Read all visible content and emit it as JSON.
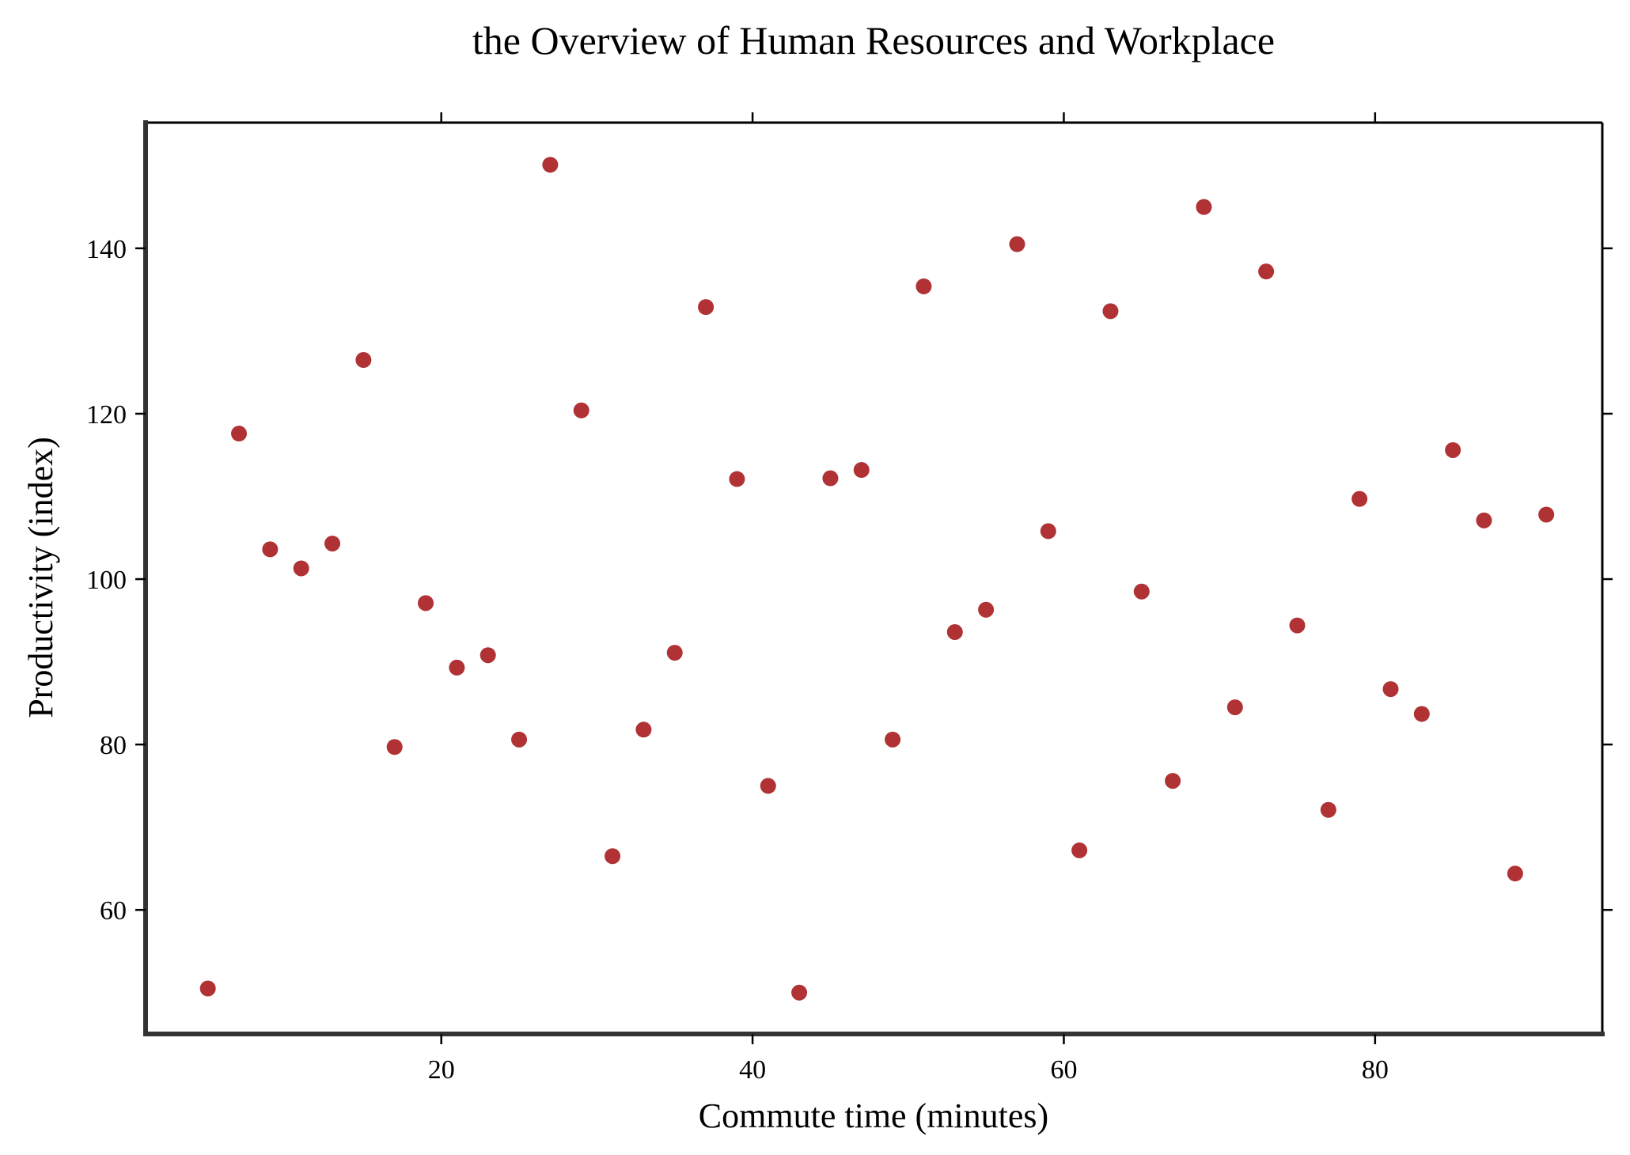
{
  "chart_data": {
    "type": "scatter",
    "title": "the Overview of Human Resources and Workplace",
    "xlabel": "Commute time (minutes)",
    "ylabel": "Productivity (index)",
    "xlim": [
      1.0,
      94.6
    ],
    "ylim": [
      45.0,
      155.2
    ],
    "xticks": [
      20,
      40,
      60,
      80
    ],
    "yticks": [
      60,
      80,
      100,
      120,
      140
    ],
    "grid": false,
    "legend": "none",
    "color": "#b03234",
    "series": [
      {
        "x": [
          5.0,
          7.0,
          9.0,
          11.0,
          13.0,
          15.0,
          17.0,
          19.0,
          21.0,
          23.0,
          25.0,
          27.0,
          29.0,
          31.0,
          33.0,
          35.0,
          37.0,
          39.0,
          41.0,
          43.0,
          45.0,
          47.0,
          49.0,
          51.0,
          53.0,
          55.0,
          57.0,
          59.0,
          61.0,
          63.0,
          65.0,
          67.0,
          69.0,
          71.0,
          73.0,
          75.0,
          77.0,
          79.0,
          81.0,
          83.0,
          85.0,
          87.0,
          89.0,
          91.0
        ],
        "y": [
          50.5,
          117.6,
          103.6,
          101.3,
          104.3,
          126.5,
          79.7,
          97.1,
          89.3,
          90.8,
          80.6,
          150.1,
          120.4,
          66.5,
          81.8,
          91.1,
          132.9,
          112.1,
          75.0,
          50.0,
          112.2,
          113.2,
          80.6,
          135.4,
          93.6,
          96.3,
          140.5,
          105.8,
          67.2,
          132.4,
          98.5,
          75.6,
          145.0,
          84.5,
          137.2,
          94.4,
          72.1,
          109.7,
          86.7,
          83.7,
          115.6,
          107.1,
          64.4,
          107.8
        ]
      }
    ]
  }
}
